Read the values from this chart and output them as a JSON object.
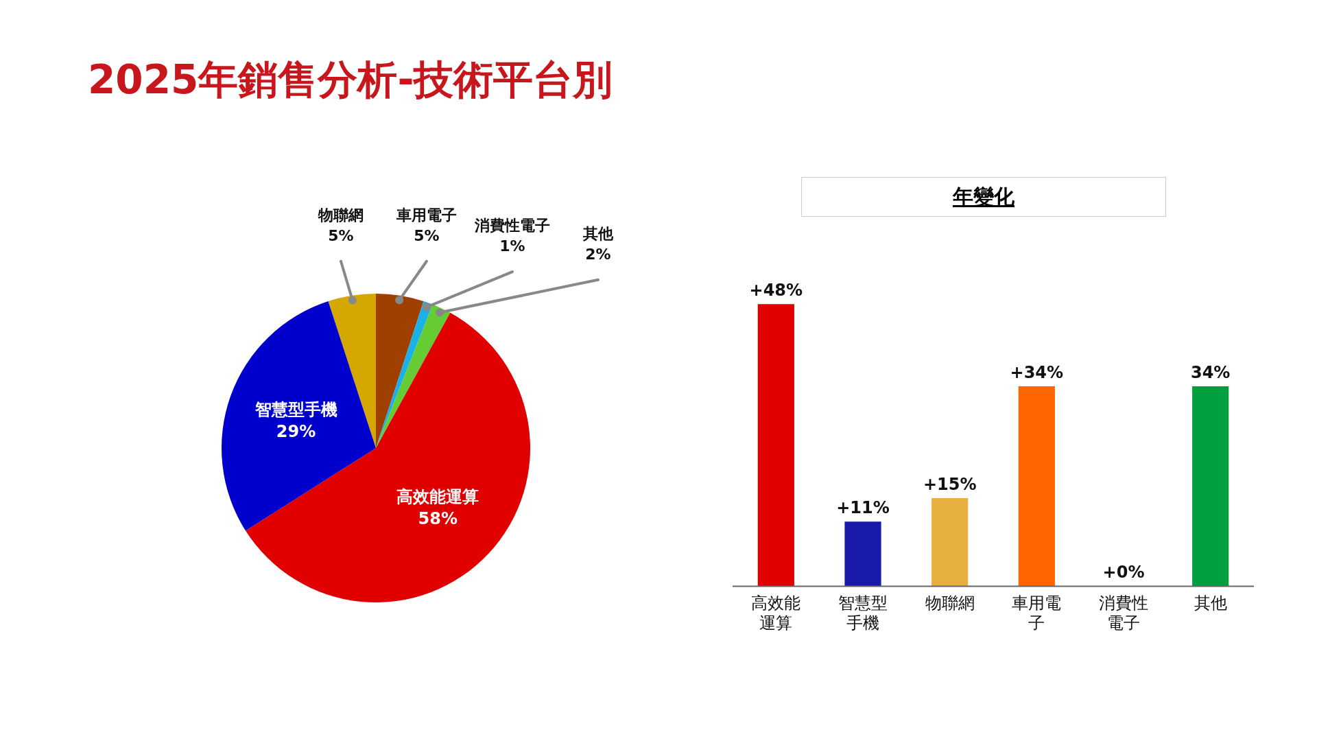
{
  "chart_data": [
    {
      "type": "pie",
      "title": "2025年銷售分析-技術平台別",
      "categories": [
        "物聯網",
        "車用電子",
        "消費性電子",
        "其他",
        "高效能運算",
        "智慧型手機"
      ],
      "values": [
        5,
        5,
        1,
        2,
        58,
        29
      ],
      "value_labels": [
        "5%",
        "5%",
        "1%",
        "2%",
        "58%",
        "29%"
      ],
      "colors": [
        "#d4a800",
        "#a04000",
        "#1ab0e8",
        "#66cc33",
        "#e00000",
        "#0000cc"
      ],
      "legend": false
    },
    {
      "type": "bar",
      "title": "年變化",
      "categories": [
        "高效能運算",
        "智慧型手機",
        "物聯網",
        "車用電子",
        "消費性電子",
        "其他"
      ],
      "values": [
        48,
        11,
        15,
        34,
        0,
        34
      ],
      "value_labels": [
        "+48%",
        "+11%",
        "+15%",
        "+34%",
        "+0%",
        "34%"
      ],
      "colors": [
        "#e00000",
        "#1a1aaa",
        "#e8b040",
        "#ff6600",
        "#1ab0e8",
        "#00a040"
      ],
      "grid": false,
      "legend": false
    }
  ]
}
